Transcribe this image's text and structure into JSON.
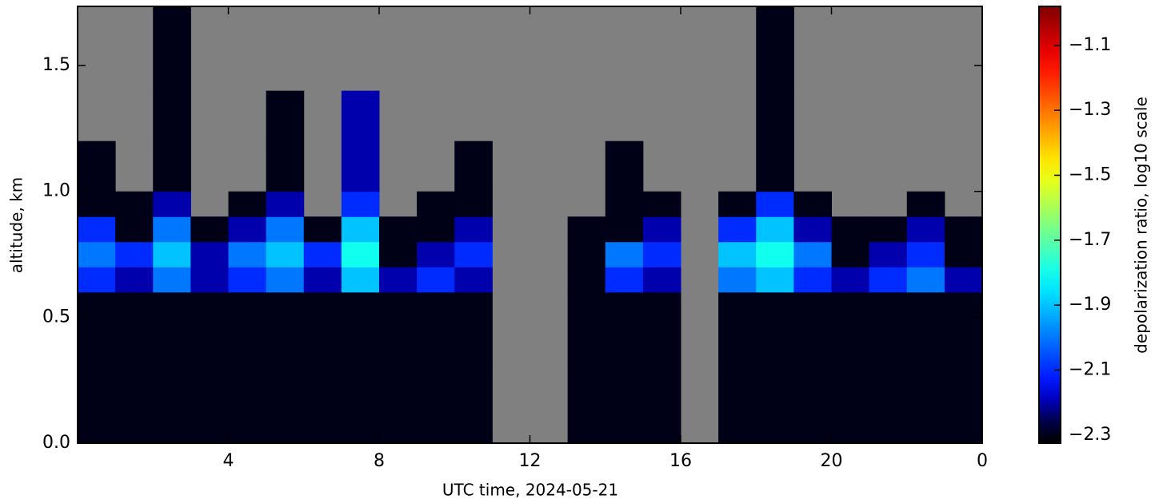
{
  "chart_data": {
    "type": "heatmap",
    "xlabel": "UTC time,  2024-05-21",
    "ylabel": "altitude, km",
    "colorbar_label": "depolarization ratio, log10 scale",
    "colormap": "jet",
    "missing_color": "#808080",
    "xbins": [
      0,
      1,
      2,
      3,
      4,
      5,
      6,
      7,
      8,
      9,
      10,
      11,
      12,
      13,
      14,
      15,
      16,
      17,
      18,
      19,
      20,
      21,
      22,
      23,
      24
    ],
    "ybins": [
      0,
      0.3,
      0.6,
      0.7,
      0.8,
      0.9,
      1.0,
      1.2,
      1.4,
      1.735
    ],
    "z": [
      [
        -2.3,
        -2.3,
        -2.3,
        -2.3,
        -2.3,
        -2.3,
        -2.3,
        -2.3,
        -2.3,
        -2.3,
        -2.3,
        null,
        null,
        -2.3,
        -2.3,
        -2.3,
        null,
        -2.3,
        -2.3,
        -2.3,
        -2.3,
        -2.3,
        -2.3,
        -2.3
      ],
      [
        -2.3,
        -2.3,
        -2.3,
        -2.3,
        -2.3,
        -2.3,
        -2.3,
        -2.3,
        -2.3,
        -2.3,
        -2.3,
        null,
        null,
        -2.3,
        -2.3,
        -2.3,
        null,
        -2.3,
        -2.3,
        -2.3,
        -2.3,
        -2.3,
        -2.3,
        -2.3
      ],
      [
        -2.1,
        -2.2,
        -2.0,
        -2.2,
        -2.1,
        -2.0,
        -2.2,
        -1.9,
        -2.2,
        -2.1,
        -2.2,
        null,
        null,
        -2.3,
        -2.1,
        -2.2,
        null,
        -2.0,
        -1.9,
        -2.1,
        -2.2,
        -2.1,
        -2.0,
        -2.2
      ],
      [
        -2.0,
        -2.1,
        -1.9,
        -2.2,
        -2.0,
        -1.9,
        -2.1,
        -1.8,
        -2.3,
        -2.2,
        -2.1,
        null,
        null,
        -2.3,
        -2.0,
        -2.1,
        null,
        -1.9,
        -1.8,
        -2.0,
        -2.3,
        -2.2,
        -2.1,
        -2.3
      ],
      [
        -2.1,
        -2.3,
        -2.0,
        -2.3,
        -2.2,
        -2.0,
        -2.3,
        -1.9,
        -2.3,
        -2.3,
        -2.2,
        null,
        null,
        -2.3,
        -2.3,
        -2.2,
        null,
        -2.1,
        -1.9,
        -2.2,
        -2.3,
        -2.3,
        -2.2,
        -2.3
      ],
      [
        -2.3,
        -2.3,
        -2.2,
        null,
        -2.3,
        -2.2,
        null,
        -2.1,
        null,
        -2.3,
        -2.3,
        null,
        null,
        null,
        -2.3,
        -2.3,
        null,
        -2.3,
        -2.1,
        -2.3,
        null,
        null,
        -2.3,
        null
      ],
      [
        -2.3,
        null,
        -2.3,
        null,
        null,
        -2.3,
        null,
        -2.2,
        null,
        null,
        -2.3,
        null,
        null,
        null,
        -2.3,
        null,
        null,
        null,
        -2.3,
        null,
        null,
        null,
        null,
        null
      ],
      [
        null,
        null,
        -2.3,
        null,
        null,
        -2.3,
        null,
        -2.2,
        null,
        null,
        null,
        null,
        null,
        null,
        null,
        null,
        null,
        null,
        -2.3,
        null,
        null,
        null,
        null,
        null
      ],
      [
        null,
        null,
        -2.3,
        null,
        null,
        null,
        null,
        null,
        null,
        null,
        null,
        null,
        null,
        null,
        null,
        null,
        null,
        null,
        -2.3,
        null,
        null,
        null,
        null,
        null
      ]
    ],
    "xlim": [
      0,
      24
    ],
    "ylim": [
      0,
      1.735
    ],
    "xticks": [
      4,
      8,
      12,
      16,
      20,
      {
        "value": 24,
        "label": "0"
      }
    ],
    "yticks": [
      {
        "value": 0,
        "label": "0.0"
      },
      0.5,
      {
        "value": 1,
        "label": "1.0"
      },
      1.5
    ],
    "clim": [
      -2.325,
      -0.98
    ],
    "cticks": [
      {
        "value": -2.3,
        "label": "−2.3"
      },
      {
        "value": -2.1,
        "label": "−2.1"
      },
      {
        "value": -1.9,
        "label": "−1.9"
      },
      {
        "value": -1.7,
        "label": "−1.7"
      },
      {
        "value": -1.5,
        "label": "−1.5"
      },
      {
        "value": -1.3,
        "label": "−1.3"
      },
      {
        "value": -1.1,
        "label": "−1.1"
      }
    ]
  }
}
